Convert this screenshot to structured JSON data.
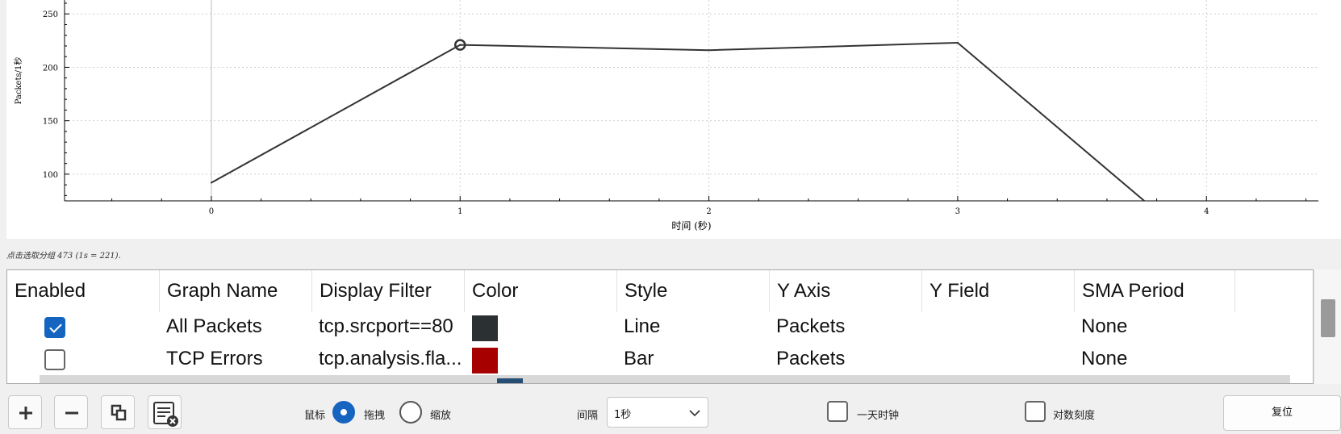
{
  "chart_data": {
    "type": "line",
    "x": [
      0,
      1,
      2,
      3,
      3.75
    ],
    "series": [
      {
        "values": [
          92,
          221,
          216,
          223,
          75
        ],
        "color": "#333333"
      }
    ],
    "highlight_point": {
      "x": 1,
      "y": 221
    },
    "xlabel": "时间 (秒)",
    "ylabel": "Packets/1秒",
    "x_ticks": [
      "0",
      "1",
      "2",
      "3",
      "4"
    ],
    "y_ticks": [
      "100",
      "150",
      "200",
      "250"
    ],
    "xlim": [
      -0.59,
      4.45
    ],
    "ylim": [
      75,
      263
    ],
    "grid": true
  },
  "status": {
    "text": "点击选取分组 473 (1s = 221)."
  },
  "table": {
    "columns": [
      "Enabled",
      "Graph Name",
      "Display Filter",
      "Color",
      "Style",
      "Y Axis",
      "Y Field",
      "SMA Period"
    ],
    "rows": [
      {
        "enabled": true,
        "name": "All Packets",
        "filter": "tcp.srcport==80",
        "color": "#2b3032",
        "style": "Line",
        "y_axis": "Packets",
        "y_field": "",
        "sma": "None"
      },
      {
        "enabled": false,
        "name": "TCP Errors",
        "filter": "tcp.analysis.fla...",
        "color": "#a60000",
        "style": "Bar",
        "y_axis": "Packets",
        "y_field": "",
        "sma": "None"
      }
    ]
  },
  "toolbar": {
    "add_icon": "plus-icon",
    "remove_icon": "minus-icon",
    "copy_icon": "copy-icon",
    "clear_icon": "clear-list-icon",
    "mouse_label": "鼠标",
    "drag_label": "拖拽",
    "zoom_label": "缩放",
    "mouse_mode": "drag",
    "interval_label": "间隔",
    "interval_value": "1秒",
    "time_of_day_label": "一天时钟",
    "log_scale_label": "对数刻度",
    "reset_label": "复位"
  }
}
